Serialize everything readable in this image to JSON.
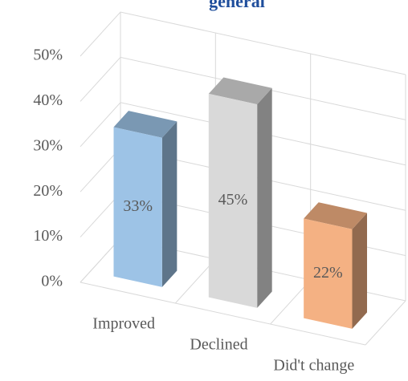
{
  "chart_data": {
    "type": "bar3d",
    "title": "general",
    "categories": [
      "Improved",
      "Declined",
      "Did't change"
    ],
    "values": [
      33,
      45,
      22
    ],
    "value_labels": [
      "33%",
      "45%",
      "22%"
    ],
    "colors": [
      "#9dc3e6",
      "#d9d9d9",
      "#f4b183"
    ],
    "ylim": [
      0,
      50
    ],
    "yticks": [
      {
        "value": 0,
        "label": "0%"
      },
      {
        "value": 10,
        "label": "10%"
      },
      {
        "value": 20,
        "label": "20%"
      },
      {
        "value": 30,
        "label": "30%"
      },
      {
        "value": 40,
        "label": "40%"
      },
      {
        "value": 50,
        "label": "50%"
      }
    ],
    "grid": true
  }
}
